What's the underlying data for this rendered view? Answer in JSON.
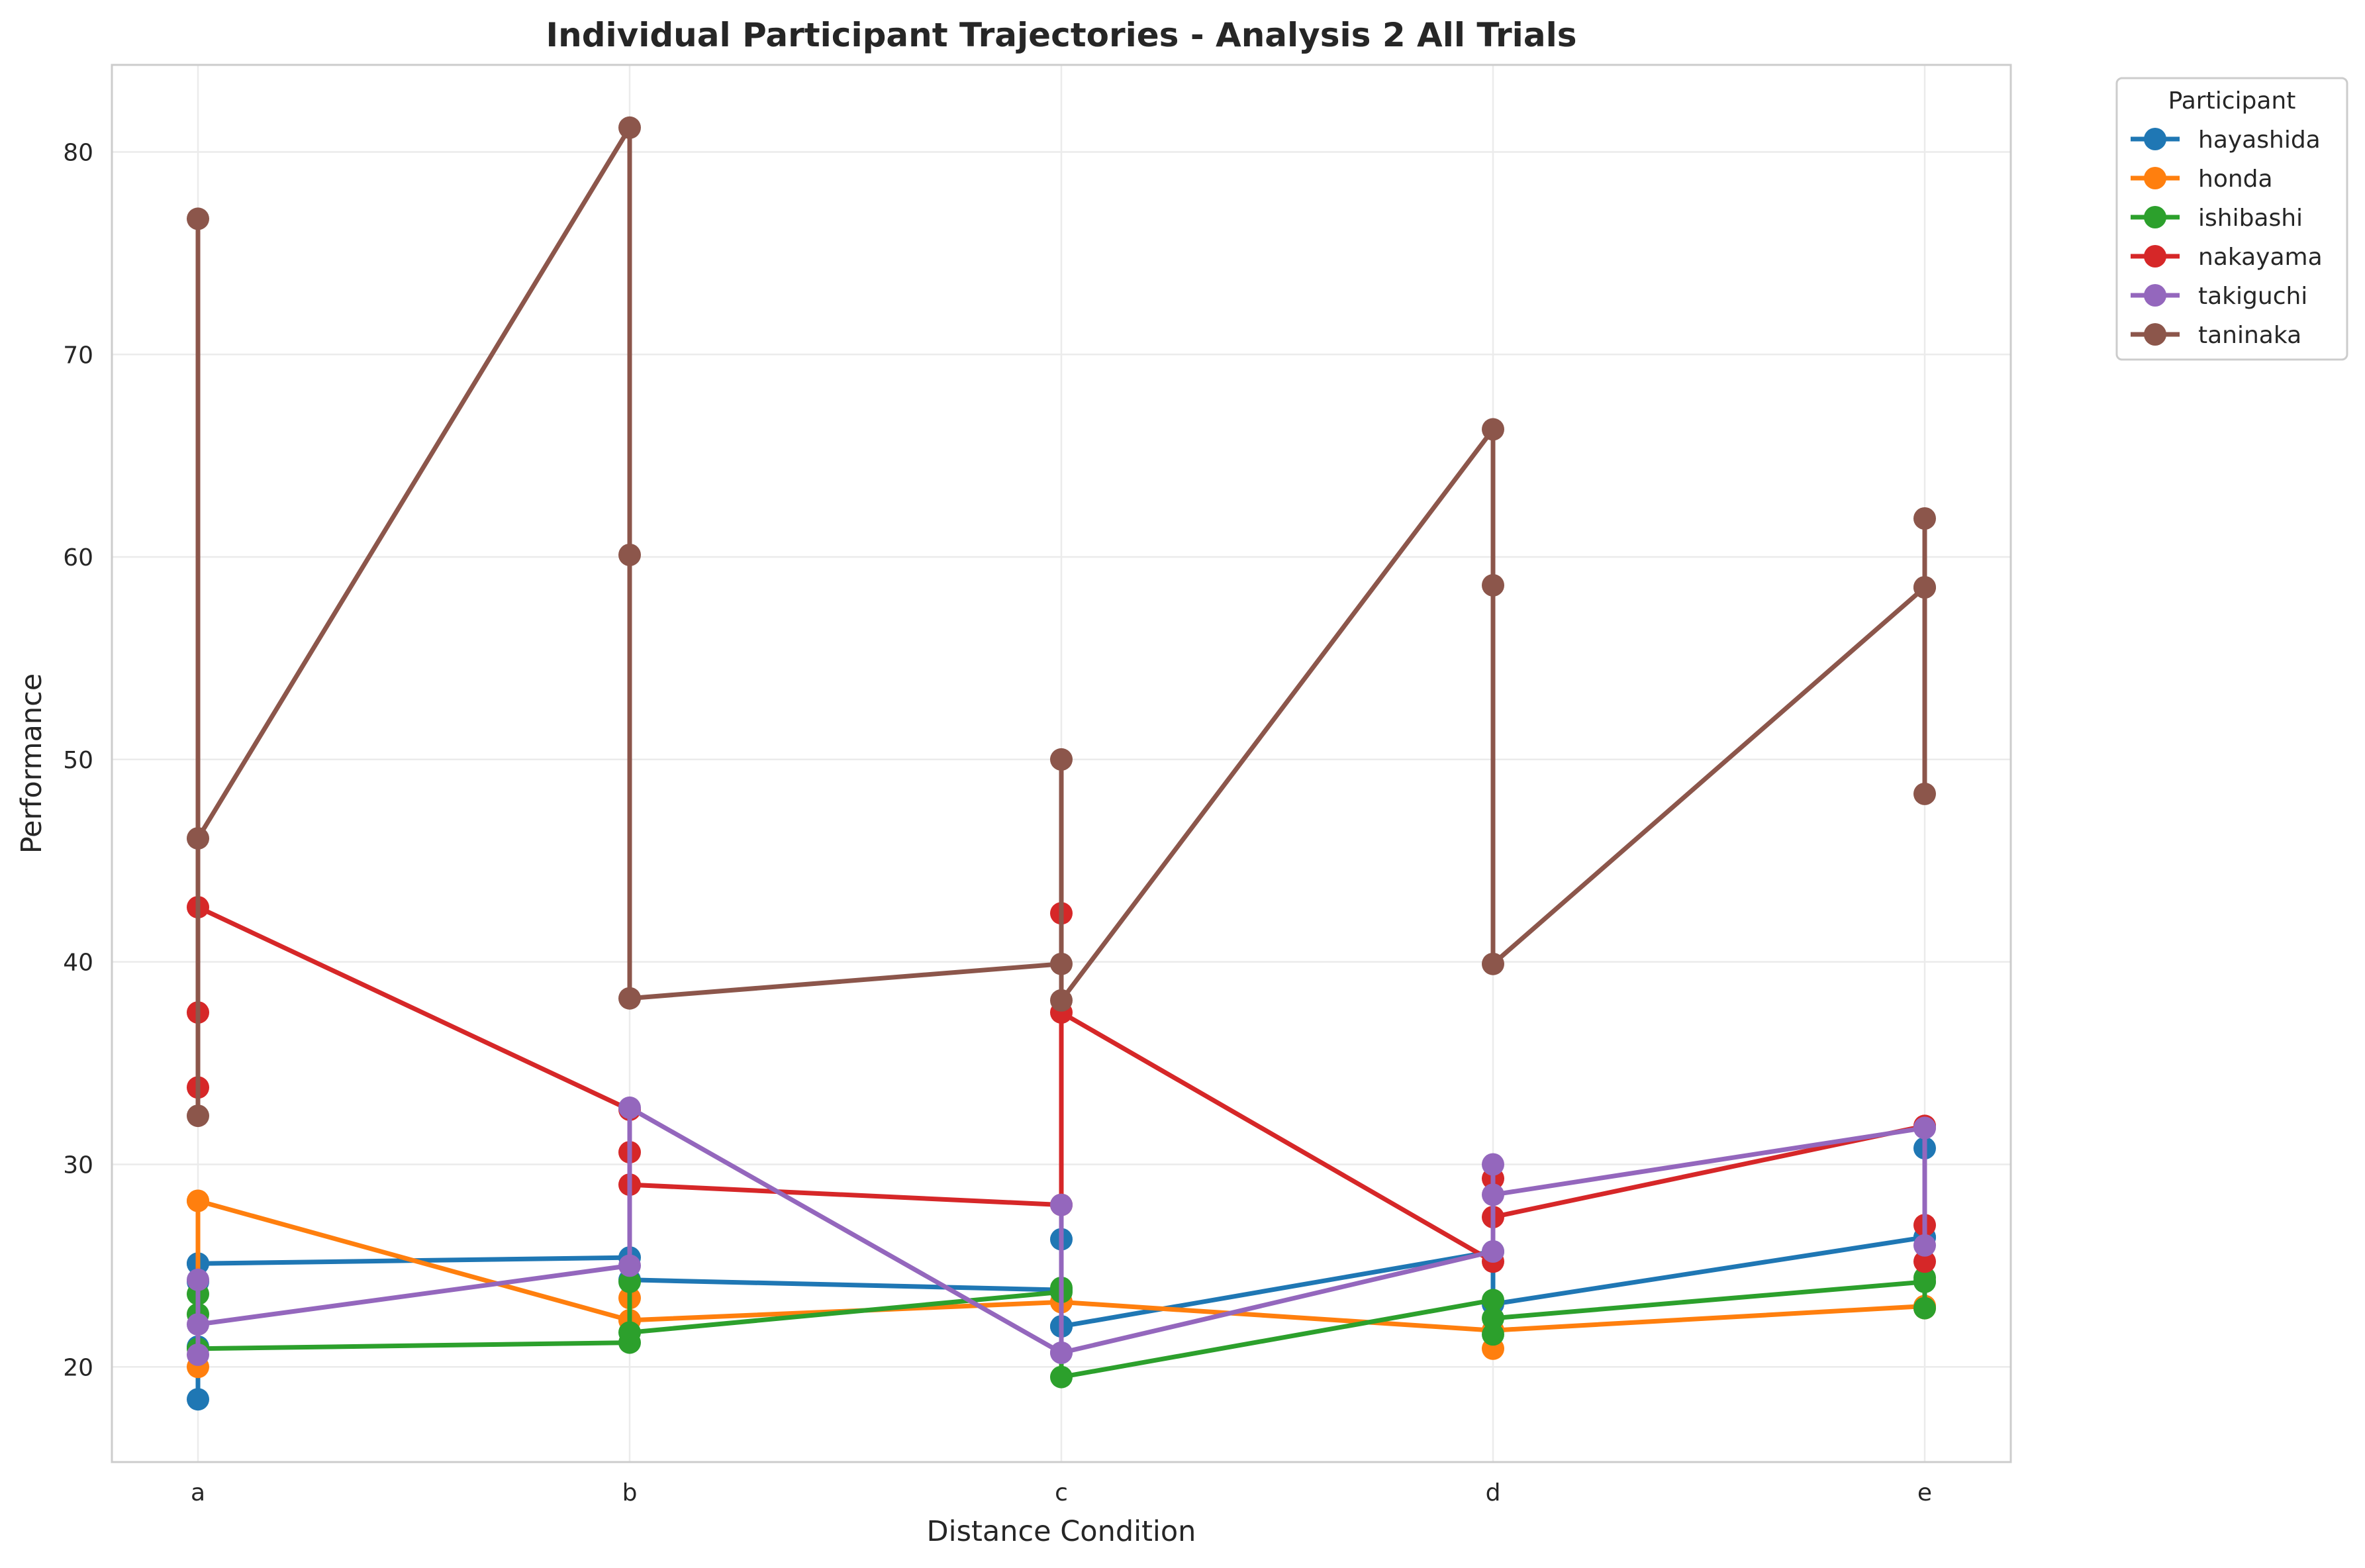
{
  "chart_data": {
    "type": "line",
    "title": "Individual Participant Trajectories - Analysis 2 All Trials",
    "xlabel": "Distance Condition",
    "ylabel": "Performance",
    "categories": [
      "a",
      "b",
      "c",
      "d",
      "e"
    ],
    "ylim": [
      15.3,
      84.3
    ],
    "yticks": [
      20,
      30,
      40,
      50,
      60,
      70,
      80
    ],
    "grid": true,
    "legend": {
      "title": "Participant",
      "placement": "outside-right-top"
    },
    "series": [
      {
        "name": "hayashida",
        "color": "#1f77b4",
        "points": [
          [
            "a",
            25.1
          ],
          [
            "a",
            24.2
          ],
          [
            "a",
            18.4
          ],
          [
            "a",
            21.0
          ],
          [
            "a",
            25.1
          ],
          [
            "b",
            25.4
          ],
          [
            "b",
            24.3
          ],
          [
            "c",
            23.8
          ],
          [
            "c",
            22.0
          ],
          [
            "c",
            26.3
          ],
          [
            "c",
            22.0
          ],
          [
            "d",
            25.7
          ],
          [
            "d",
            23.1
          ],
          [
            "e",
            26.4
          ],
          [
            "e",
            30.8
          ],
          [
            "e",
            26.4
          ]
        ]
      },
      {
        "name": "honda",
        "color": "#ff7f0e",
        "points": [
          [
            "a",
            28.2
          ],
          [
            "a",
            20.0
          ],
          [
            "a",
            28.2
          ],
          [
            "b",
            22.3
          ],
          [
            "b",
            23.4
          ],
          [
            "b",
            22.3
          ],
          [
            "c",
            23.2
          ],
          [
            "c",
            23.2
          ],
          [
            "d",
            21.8
          ],
          [
            "d",
            20.9
          ],
          [
            "d",
            21.8
          ],
          [
            "e",
            23.0
          ],
          [
            "e",
            22.9
          ],
          [
            "e",
            23.0
          ]
        ]
      },
      {
        "name": "ishibashi",
        "color": "#2ca02c",
        "points": [
          [
            "a",
            23.6
          ],
          [
            "a",
            22.6
          ],
          [
            "a",
            20.9
          ],
          [
            "b",
            21.2
          ],
          [
            "b",
            24.2
          ],
          [
            "b",
            21.7
          ],
          [
            "c",
            23.7
          ],
          [
            "c",
            23.9
          ],
          [
            "c",
            19.5
          ],
          [
            "d",
            23.3
          ],
          [
            "d",
            21.6
          ],
          [
            "d",
            22.4
          ],
          [
            "e",
            24.2
          ],
          [
            "e",
            24.4
          ],
          [
            "e",
            22.9
          ],
          [
            "e",
            24.2
          ]
        ]
      },
      {
        "name": "nakayama",
        "color": "#d62728",
        "points": [
          [
            "a",
            33.8
          ],
          [
            "a",
            37.5
          ],
          [
            "a",
            42.7
          ],
          [
            "b",
            32.7
          ],
          [
            "b",
            30.6
          ],
          [
            "b",
            29.0
          ],
          [
            "c",
            28.0
          ],
          [
            "c",
            42.4
          ],
          [
            "c",
            37.5
          ],
          [
            "d",
            25.2
          ],
          [
            "d",
            29.3
          ],
          [
            "d",
            27.4
          ],
          [
            "e",
            31.9
          ],
          [
            "e",
            27.0
          ],
          [
            "e",
            25.2
          ],
          [
            "e",
            31.9
          ]
        ]
      },
      {
        "name": "takiguchi",
        "color": "#9467bd",
        "points": [
          [
            "a",
            24.3
          ],
          [
            "a",
            20.6
          ],
          [
            "a",
            22.1
          ],
          [
            "b",
            25.0
          ],
          [
            "b",
            32.8
          ],
          [
            "c",
            20.7
          ],
          [
            "c",
            28.0
          ],
          [
            "c",
            20.7
          ],
          [
            "d",
            25.7
          ],
          [
            "d",
            30.0
          ],
          [
            "d",
            28.5
          ],
          [
            "e",
            31.8
          ],
          [
            "e",
            26.0
          ],
          [
            "e",
            31.8
          ]
        ]
      },
      {
        "name": "taninaka",
        "color": "#8c564b",
        "points": [
          [
            "a",
            32.4
          ],
          [
            "a",
            76.7
          ],
          [
            "a",
            46.1
          ],
          [
            "b",
            81.2
          ],
          [
            "b",
            60.1
          ],
          [
            "b",
            38.2
          ],
          [
            "c",
            39.9
          ],
          [
            "c",
            50.0
          ],
          [
            "c",
            38.1
          ],
          [
            "d",
            66.3
          ],
          [
            "d",
            58.6
          ],
          [
            "d",
            39.9
          ],
          [
            "e",
            58.5
          ],
          [
            "e",
            61.9
          ],
          [
            "e",
            48.3
          ],
          [
            "e",
            58.5
          ]
        ]
      }
    ]
  }
}
